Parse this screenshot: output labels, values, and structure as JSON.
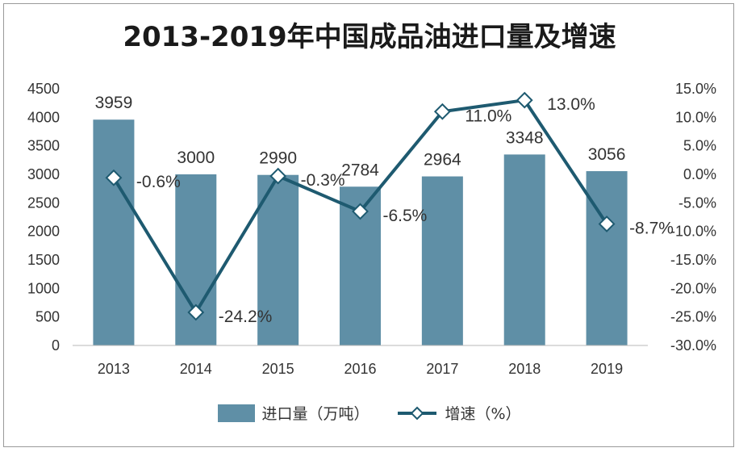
{
  "colors": {
    "bar": "#5f8fa6",
    "line": "#1e5a70",
    "marker_fill": "#ffffff"
  },
  "chart_data": {
    "type": "bar",
    "title": "2013-2019年中国成品油进口量及增速",
    "categories": [
      "2013",
      "2014",
      "2015",
      "2016",
      "2017",
      "2018",
      "2019"
    ],
    "series": [
      {
        "name": "进口量（万吨）",
        "type": "bar",
        "axis": "left",
        "values": [
          3959,
          3000,
          2990,
          2784,
          2964,
          3348,
          3056
        ],
        "labels": [
          "3959",
          "3000",
          "2990",
          "2784",
          "2964",
          "3348",
          "3056"
        ]
      },
      {
        "name": "增速（%）",
        "type": "line",
        "axis": "right",
        "values": [
          -0.6,
          -24.2,
          -0.3,
          -6.5,
          11.0,
          13.0,
          -8.7
        ],
        "labels": [
          "-0.6%",
          "-24.2%",
          "-0.3%",
          "-6.5%",
          "11.0%",
          "13.0%",
          "-8.7%"
        ]
      }
    ],
    "y_left": {
      "ylim": [
        0,
        4500
      ],
      "ticks": [
        "0",
        "500",
        "1000",
        "1500",
        "2000",
        "2500",
        "3000",
        "3500",
        "4000",
        "4500"
      ]
    },
    "y_right": {
      "ylim": [
        -30,
        15
      ],
      "ticks": [
        "-30.0%",
        "-25.0%",
        "-20.0%",
        "-15.0%",
        "-10.0%",
        "-5.0%",
        "0.0%",
        "5.0%",
        "10.0%",
        "15.0%"
      ]
    },
    "grid": false,
    "legend": "bottom"
  }
}
